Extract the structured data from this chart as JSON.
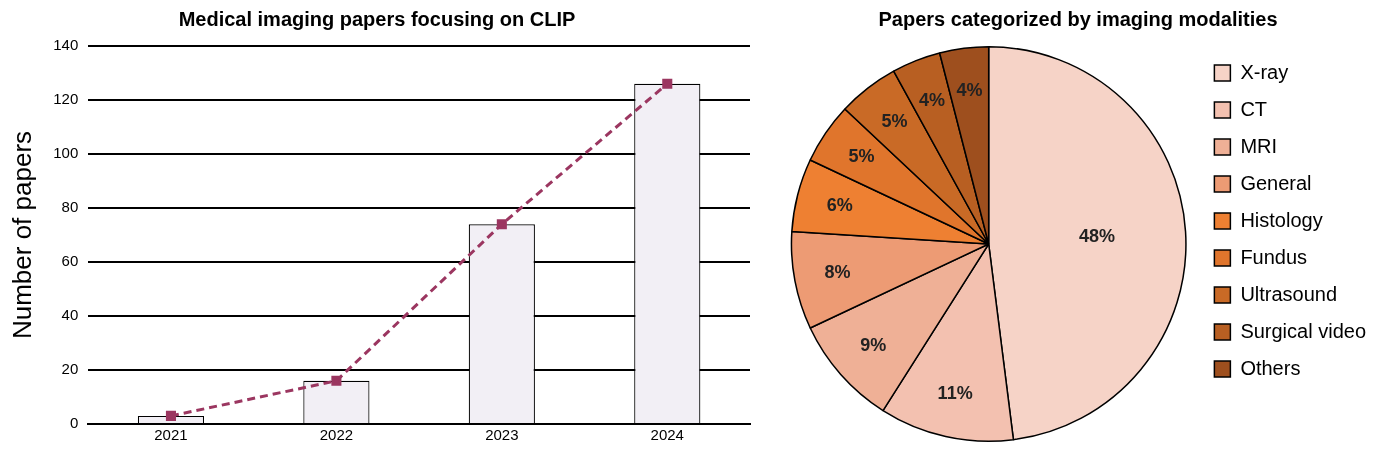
{
  "chart_data": [
    {
      "type": "bar",
      "title": "Medical imaging papers focusing on CLIP",
      "ylabel": "Number of papers",
      "categories": [
        "2021",
        "2022",
        "2023",
        "2024"
      ],
      "series": [
        {
          "type": "bar",
          "color": "#f2eff5",
          "values": [
            3,
            16,
            74,
            126
          ]
        },
        {
          "type": "line",
          "color": "#9b3660",
          "values": [
            3,
            16,
            74,
            126
          ],
          "marker": "square",
          "line_style": "dashed"
        }
      ],
      "ylim": [
        0,
        140
      ],
      "yticks": [
        0,
        20,
        40,
        60,
        80,
        100,
        120,
        140
      ],
      "grid": "y",
      "legend": false
    },
    {
      "type": "pie",
      "title": "Papers categorized by imaging modalities",
      "categories": [
        "X-ray",
        "CT",
        "MRI",
        "General",
        "Histology",
        "Fundus",
        "Ultrasound",
        "Surgical video",
        "Others"
      ],
      "values": [
        48,
        11,
        9,
        8,
        6,
        5,
        5,
        4,
        4
      ],
      "colors": [
        "#f6d3c7",
        "#f3c1b0",
        "#efb096",
        "#ed9b74",
        "#ee8032",
        "#e0752c",
        "#c96a26",
        "#b85f22",
        "#9e4f1e"
      ],
      "value_labels": [
        "48%",
        "11%",
        "9%",
        "8%",
        "6%",
        "5%",
        "5%",
        "4%",
        "4%"
      ],
      "legend": "right"
    }
  ]
}
